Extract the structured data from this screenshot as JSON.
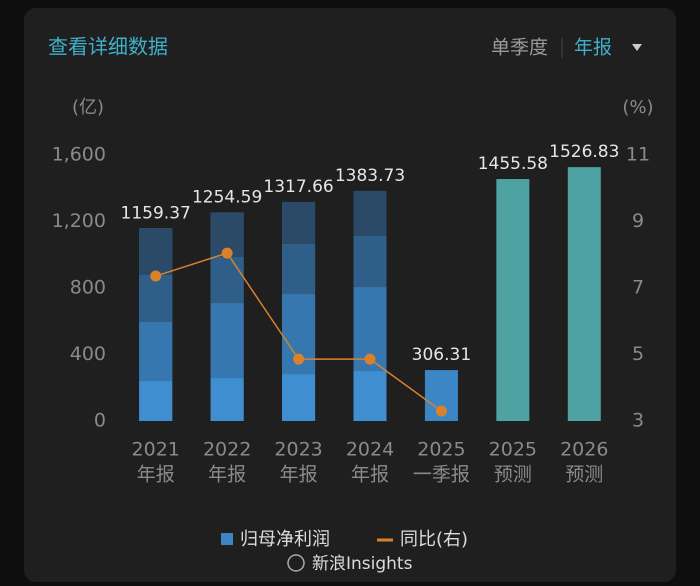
{
  "header": {
    "title": "查看详细数据",
    "tabs": [
      "单季度",
      "年报"
    ]
  },
  "chart_data": {
    "type": "bar",
    "y_unit": "(亿)",
    "y2_unit": "(%)",
    "categories": [
      [
        "2021",
        "年报"
      ],
      [
        "2022",
        "年报"
      ],
      [
        "2023",
        "年报"
      ],
      [
        "2024",
        "年报"
      ],
      [
        "2025",
        "一季报"
      ],
      [
        "2025",
        "预测"
      ],
      [
        "2026",
        "预测"
      ]
    ],
    "ylim": [
      0,
      1600
    ],
    "yticks": [
      0,
      400,
      800,
      {
        "value": 1200,
        "label": "1,200"
      },
      {
        "value": 1600,
        "label": "1,600"
      }
    ],
    "y2lim": [
      3,
      11
    ],
    "y2ticks": [
      3,
      5,
      7,
      9,
      11
    ],
    "series": [
      {
        "name": "归母净利润",
        "color": "#3b87c6",
        "values": [
          1159.37,
          1254.59,
          1317.66,
          1383.73,
          306.31,
          1455.58,
          1526.83
        ],
        "bar_colors": [
          "#3b87c6",
          "#3b87c6",
          "#3b87c6",
          "#3b87c6",
          "#3b87c6",
          "#4ea3a2",
          "#4ea3a2"
        ],
        "segment_colors": [
          "#3f8fd0",
          "#3677b0",
          "#2f5f89",
          "#2a4a67"
        ],
        "segments": [
          [
            240,
            355,
            282,
            282.37
          ],
          [
            258,
            451,
            277,
            268.59
          ],
          [
            282,
            481,
            301,
            253.66
          ],
          [
            300,
            505,
            307,
            271.73
          ],
          null,
          null,
          null
        ]
      },
      {
        "name": "同比(右)",
        "type": "line",
        "axis": "y2",
        "color": "#d9822b",
        "values": [
          7.36,
          8.05,
          4.86,
          4.86,
          3.3,
          null,
          null
        ]
      }
    ]
  },
  "footer": {
    "watermark": "新浪Insights"
  }
}
